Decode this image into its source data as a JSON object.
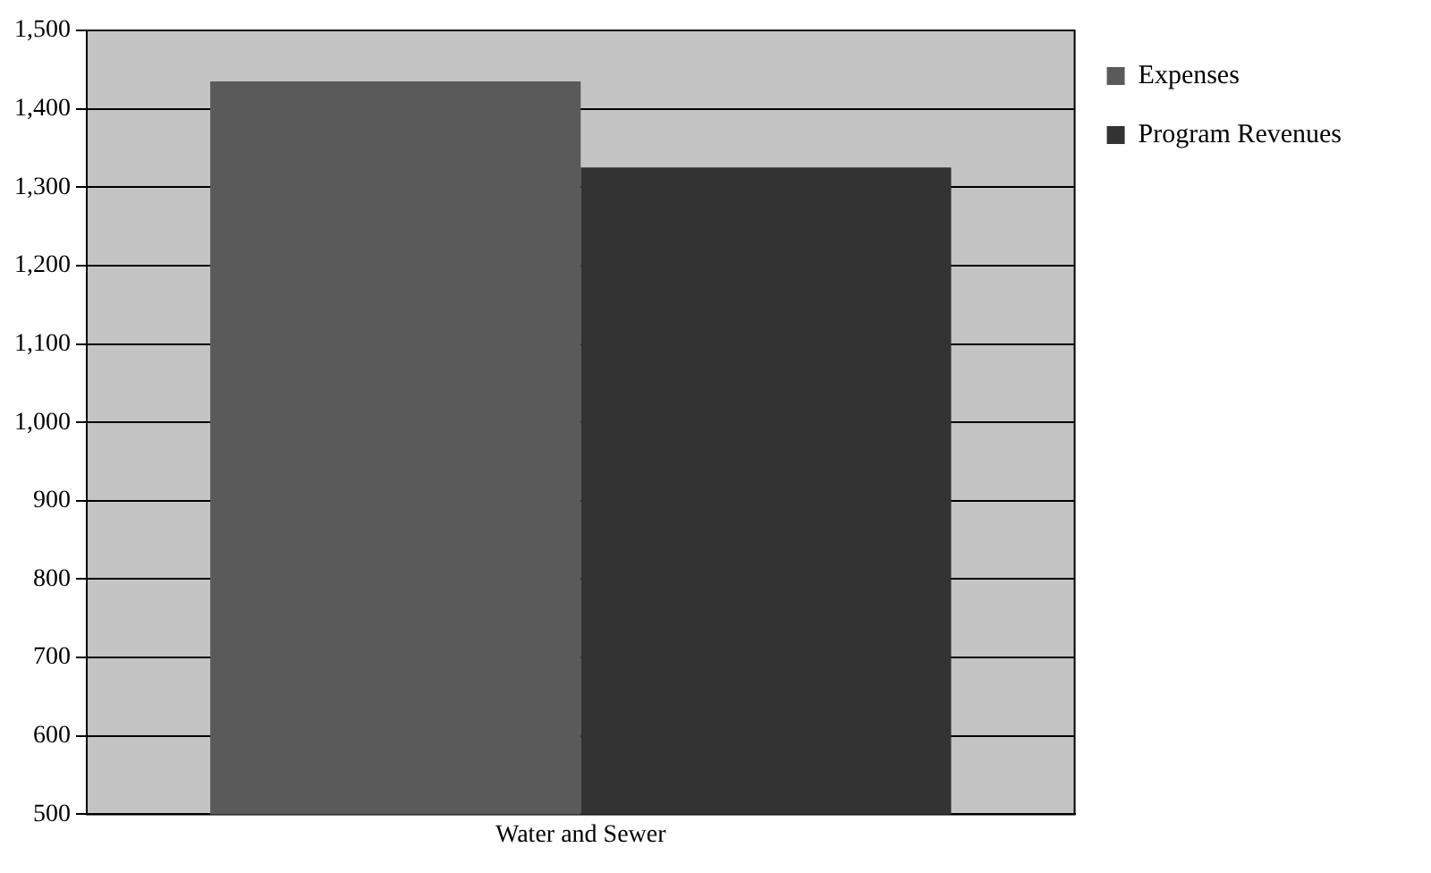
{
  "chart_data": {
    "type": "bar",
    "categories": [
      "Water and Sewer"
    ],
    "series": [
      {
        "name": "Expenses",
        "color": "#5a5a5a",
        "values": [
          1435
        ]
      },
      {
        "name": "Program Revenues",
        "color": "#333333",
        "values": [
          1325
        ]
      }
    ],
    "ylim": [
      500,
      1500
    ],
    "yticks": [
      {
        "value": 500,
        "label": "500"
      },
      {
        "value": 600,
        "label": "600"
      },
      {
        "value": 700,
        "label": "700"
      },
      {
        "value": 800,
        "label": "800"
      },
      {
        "value": 900,
        "label": "900"
      },
      {
        "value": 1000,
        "label": "1,000"
      },
      {
        "value": 1100,
        "label": "1,100"
      },
      {
        "value": 1200,
        "label": "1,200"
      },
      {
        "value": 1300,
        "label": "1,300"
      },
      {
        "value": 1400,
        "label": "1,400"
      },
      {
        "value": 1500,
        "label": "1,500"
      }
    ],
    "grid": "y",
    "legend": "right"
  }
}
